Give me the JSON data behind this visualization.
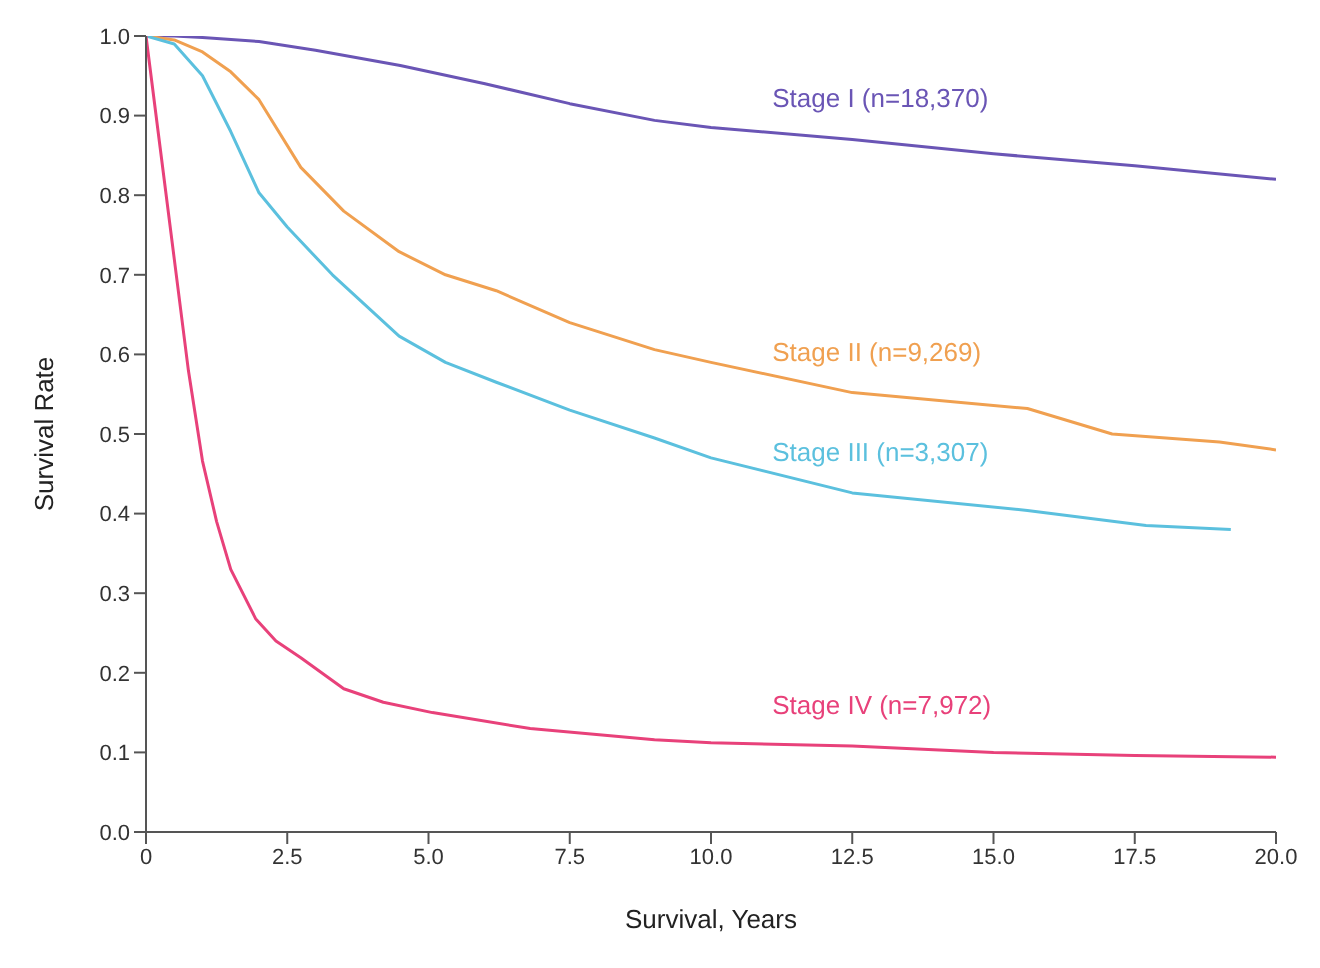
{
  "chart_data": {
    "type": "line",
    "xlabel": "Survival, Years",
    "ylabel": "Survival Rate",
    "xlim": [
      0,
      20
    ],
    "ylim": [
      0,
      1
    ],
    "xticks": [
      0,
      2.5,
      {
        "value": 5,
        "label": "5.0"
      },
      7.5,
      {
        "value": 10,
        "label": "10.0"
      },
      12.5,
      {
        "value": 15,
        "label": "15.0"
      },
      17.5,
      {
        "value": 20,
        "label": "20.0"
      }
    ],
    "yticks": [
      {
        "value": 0,
        "label": "0.0"
      },
      0.1,
      0.2,
      0.3,
      0.4,
      0.5,
      0.6,
      0.7,
      0.8,
      0.9,
      {
        "value": 1,
        "label": "1.0"
      }
    ],
    "grid": false,
    "legend": false,
    "marker": "none",
    "line_style": "solid",
    "series": [
      {
        "name": "Stage I (n=18,370)",
        "color": "#6a55b5",
        "x": [
          0,
          0.5,
          1,
          2,
          3,
          4.5,
          6,
          7.5,
          9,
          10,
          12.5,
          15,
          17.5,
          20
        ],
        "values": [
          1,
          1,
          0.998,
          0.993,
          0.982,
          0.963,
          0.94,
          0.915,
          0.894,
          0.885,
          0.87,
          0.852,
          0.837,
          0.82
        ]
      },
      {
        "name": "Stage II (n=9,269)",
        "color": "#f0a050",
        "x": [
          0,
          0.5,
          1,
          1.5,
          2,
          2.74,
          3.5,
          4.48,
          5.3,
          6.2,
          7.5,
          9,
          10,
          12.5,
          15.6,
          17.1,
          19,
          20
        ],
        "values": [
          1,
          0.995,
          0.98,
          0.955,
          0.92,
          0.835,
          0.78,
          0.729,
          0.7,
          0.68,
          0.64,
          0.606,
          0.59,
          0.552,
          0.532,
          0.5,
          0.49,
          0.48
        ]
      },
      {
        "name": "Stage III (n=3,307)",
        "color": "#5bc0de",
        "x": [
          0,
          0.5,
          1,
          1.5,
          2,
          2.5,
          3.3,
          4.48,
          5.3,
          6.2,
          7.5,
          9,
          10,
          12.5,
          15.6,
          17.7,
          19.2
        ],
        "values": [
          1,
          0.99,
          0.95,
          0.88,
          0.803,
          0.76,
          0.7,
          0.623,
          0.59,
          0.565,
          0.53,
          0.495,
          0.47,
          0.426,
          0.404,
          0.385,
          0.38
        ]
      },
      {
        "name": "Stage IV (n=7,972)",
        "color": "#e8417a",
        "x": [
          0,
          0.25,
          0.5,
          0.75,
          1,
          1.25,
          1.5,
          1.94,
          2.3,
          2.74,
          3.5,
          4.2,
          5.07,
          6.8,
          9,
          10,
          12.5,
          15,
          17.5,
          20
        ],
        "values": [
          1,
          0.86,
          0.72,
          0.58,
          0.466,
          0.39,
          0.33,
          0.268,
          0.24,
          0.219,
          0.18,
          0.163,
          0.15,
          0.13,
          0.116,
          0.112,
          0.108,
          0.1,
          0.096,
          0.094
        ]
      }
    ]
  }
}
